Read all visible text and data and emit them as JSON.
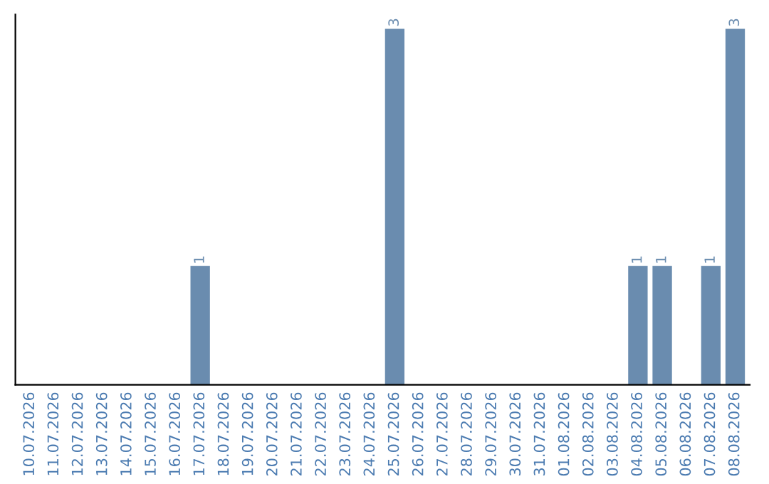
{
  "chart_data": {
    "type": "bar",
    "categories": [
      "10.07.2026",
      "11.07.2026",
      "12.07.2026",
      "13.07.2026",
      "14.07.2026",
      "15.07.2026",
      "16.07.2026",
      "17.07.2026",
      "18.07.2026",
      "19.07.2026",
      "20.07.2026",
      "21.07.2026",
      "22.07.2026",
      "23.07.2026",
      "24.07.2026",
      "25.07.2026",
      "26.07.2026",
      "27.07.2026",
      "28.07.2026",
      "29.07.2026",
      "30.07.2026",
      "31.07.2026",
      "01.08.2026",
      "02.08.2026",
      "03.08.2026",
      "04.08.2026",
      "05.08.2026",
      "06.08.2026",
      "07.08.2026",
      "08.08.2026"
    ],
    "values": [
      0,
      0,
      0,
      0,
      0,
      0,
      0,
      1,
      0,
      0,
      0,
      0,
      0,
      0,
      0,
      3,
      0,
      0,
      0,
      0,
      0,
      0,
      0,
      0,
      0,
      1,
      1,
      0,
      1,
      3
    ],
    "value_labels": [
      null,
      null,
      null,
      null,
      null,
      null,
      null,
      "1",
      null,
      null,
      null,
      null,
      null,
      null,
      null,
      "3",
      null,
      null,
      null,
      null,
      null,
      null,
      null,
      null,
      null,
      "1",
      "1",
      null,
      "1",
      "3"
    ],
    "color": "#6a8caf",
    "tick_labels": "x",
    "grid": false
  }
}
